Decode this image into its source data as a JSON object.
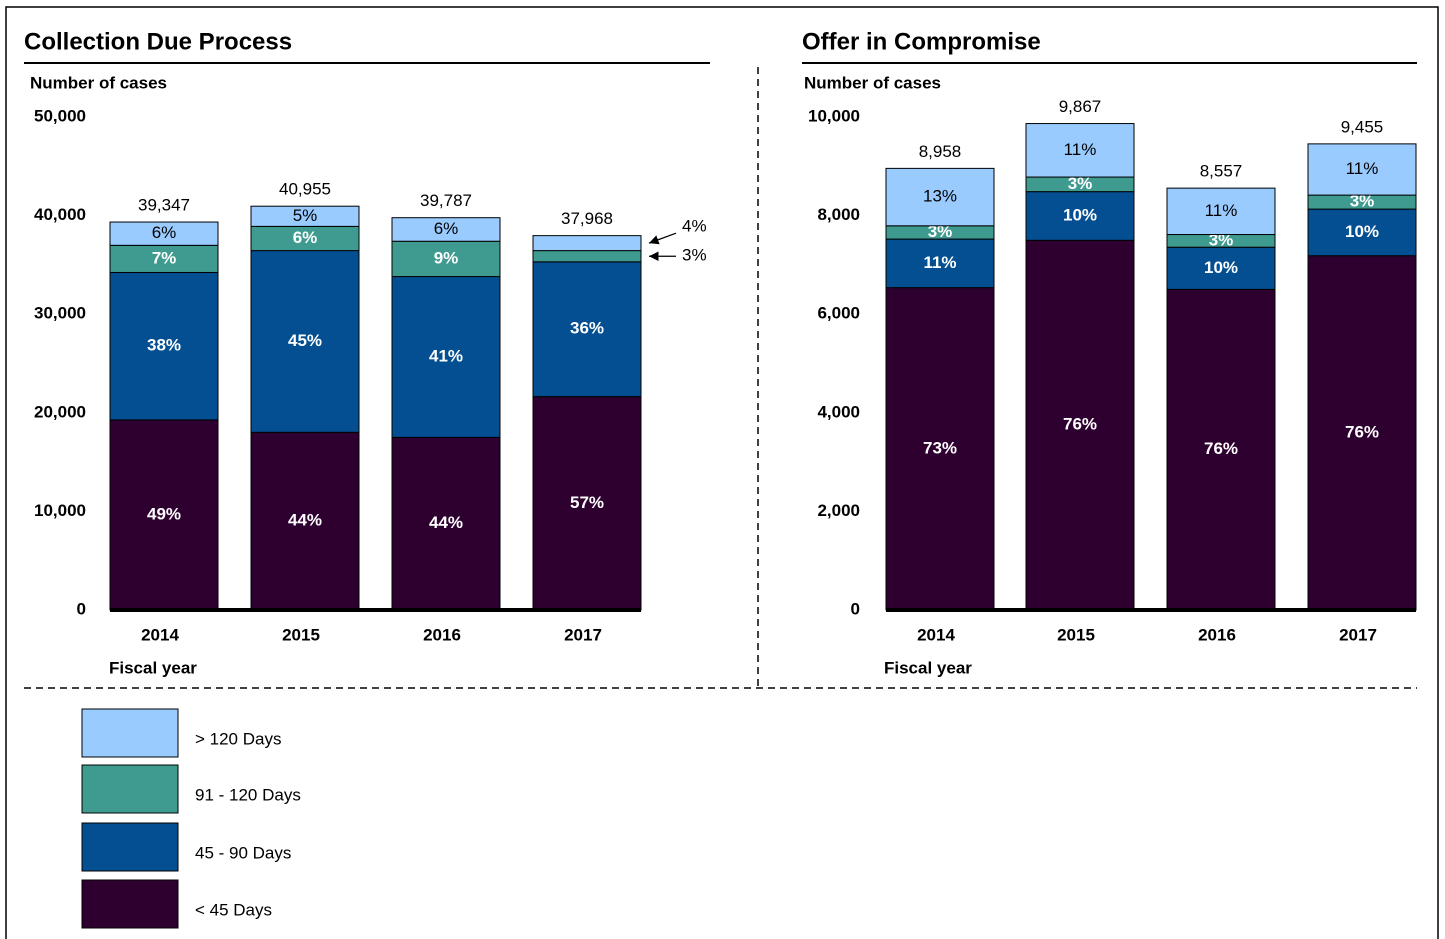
{
  "chart_data": [
    {
      "type": "stacked_bar",
      "title": "Collection Due Process",
      "y_label": "Number of cases",
      "x_label": "Fiscal year",
      "categories": [
        "2014",
        "2015",
        "2016",
        "2017"
      ],
      "ylim": [
        0,
        50000
      ],
      "yticks": [
        0,
        {
          "value": 10000,
          "label": "10,000"
        },
        {
          "value": 20000,
          "label": "20,000"
        },
        {
          "value": 30000,
          "label": "30,000"
        },
        {
          "value": 40000,
          "label": "40,000"
        },
        {
          "value": 50000,
          "label": "50,000"
        }
      ],
      "totals": [
        39347,
        40955,
        39787,
        37968
      ],
      "total_labels": [
        "39,347",
        "40,955",
        "39,787",
        "37,968"
      ],
      "series": [
        {
          "name": "< 45 Days",
          "color": "#2e0030",
          "values": [
            19280,
            18020,
            17506,
            21642
          ],
          "value_labels": [
            "49%",
            "44%",
            "44%",
            "57%"
          ]
        },
        {
          "name": "45 - 90 Days",
          "color": "#034f91",
          "values": [
            14952,
            18430,
            16313,
            13668
          ],
          "value_labels": [
            "38%",
            "45%",
            "41%",
            "36%"
          ]
        },
        {
          "name": "91 - 120 Days",
          "color": "#3f9b8f",
          "values": [
            2754,
            2457,
            3581,
            1139
          ],
          "value_labels": [
            "7%",
            "6%",
            "9%",
            "3%"
          ]
        },
        {
          "name": "> 120 Days",
          "color": "#99cbff",
          "values": [
            2361,
            2048,
            2387,
            1519
          ],
          "value_labels": [
            "6%",
            "5%",
            "6%",
            "4%"
          ]
        }
      ]
    },
    {
      "type": "stacked_bar",
      "title": "Offer in Compromise",
      "y_label": "Number of cases",
      "x_label": "Fiscal year",
      "categories": [
        "2014",
        "2015",
        "2016",
        "2017"
      ],
      "ylim": [
        0,
        10000
      ],
      "yticks": [
        0,
        {
          "value": 2000,
          "label": "2,000"
        },
        {
          "value": 4000,
          "label": "4,000"
        },
        {
          "value": 6000,
          "label": "6,000"
        },
        {
          "value": 8000,
          "label": "8,000"
        },
        {
          "value": 10000,
          "label": "10,000"
        }
      ],
      "totals": [
        8958,
        9867,
        8557,
        9455
      ],
      "total_labels": [
        "8,958",
        "9,867",
        "8,557",
        "9,455"
      ],
      "series": [
        {
          "color": "#2e0030",
          "values": [
            6539,
            7499,
            6503,
            7186
          ],
          "value_labels": [
            "73%",
            "76%",
            "76%",
            "76%"
          ]
        },
        {
          "color": "#034f91",
          "values": [
            985,
            987,
            856,
            946
          ],
          "value_labels": [
            "11%",
            "10%",
            "10%",
            "10%"
          ]
        },
        {
          "color": "#3f9b8f",
          "values": [
            269,
            296,
            257,
            284
          ],
          "value_labels": [
            "3%",
            "3%",
            "3%",
            "3%"
          ]
        },
        {
          "color": "#99cbff",
          "values": [
            1165,
            1085,
            941,
            1039
          ],
          "value_labels": [
            "13%",
            "11%",
            "11%",
            "11%"
          ]
        }
      ]
    }
  ]
}
